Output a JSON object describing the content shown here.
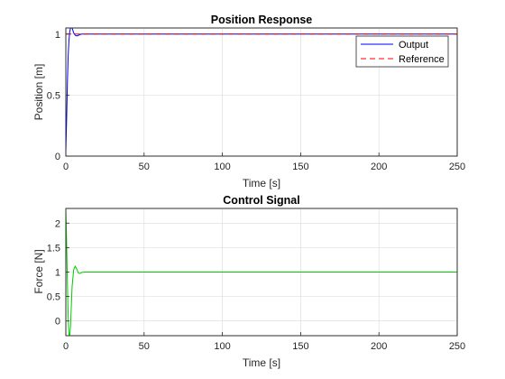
{
  "chart_data": [
    {
      "type": "line",
      "title": "Position Response",
      "xlabel": "Time [s]",
      "ylabel": "Position [m]",
      "xlim": [
        0,
        250
      ],
      "ylim": [
        0,
        1.05
      ],
      "xticks": [
        0,
        50,
        100,
        150,
        200,
        250
      ],
      "yticks": [
        0,
        0.5,
        1
      ],
      "grid": true,
      "legend": "top-right",
      "series": [
        {
          "name": "Output",
          "color": "#0000ff",
          "style": "solid",
          "x": [
            0,
            0.5,
            1,
            1.5,
            2,
            2.5,
            3,
            3.5,
            4,
            4.5,
            5,
            6,
            7,
            8,
            9,
            10,
            12,
            15,
            250
          ],
          "y": [
            0.04,
            0.3,
            0.6,
            0.82,
            0.95,
            1.02,
            1.05,
            1.06,
            1.05,
            1.03,
            1.01,
            0.99,
            0.985,
            0.99,
            0.995,
            1.0,
            1.0,
            1.0,
            1.0
          ]
        },
        {
          "name": "Reference",
          "color": "#ff0000",
          "style": "dashed",
          "x": [
            0,
            250
          ],
          "y": [
            1,
            1
          ]
        }
      ]
    },
    {
      "type": "line",
      "title": "Control Signal",
      "xlabel": "Time [s]",
      "ylabel": "Force [N]",
      "xlim": [
        0,
        250
      ],
      "ylim": [
        -0.3,
        2.3
      ],
      "xticks": [
        0,
        50,
        100,
        150,
        200,
        250
      ],
      "yticks": [
        0,
        0.5,
        1,
        1.5,
        2
      ],
      "grid": true,
      "series": [
        {
          "color": "#00cc00",
          "style": "solid",
          "x": [
            0,
            0.5,
            1,
            1.5,
            2,
            2.5,
            3,
            3.5,
            4,
            5,
            6,
            7,
            8,
            9,
            10,
            12,
            15,
            250
          ],
          "y": [
            2.3,
            1.6,
            0.8,
            0.1,
            -0.3,
            -0.3,
            -0.1,
            0.3,
            0.7,
            1.05,
            1.12,
            1.06,
            0.98,
            0.97,
            0.99,
            1.0,
            1.0,
            1.0
          ]
        }
      ]
    }
  ]
}
